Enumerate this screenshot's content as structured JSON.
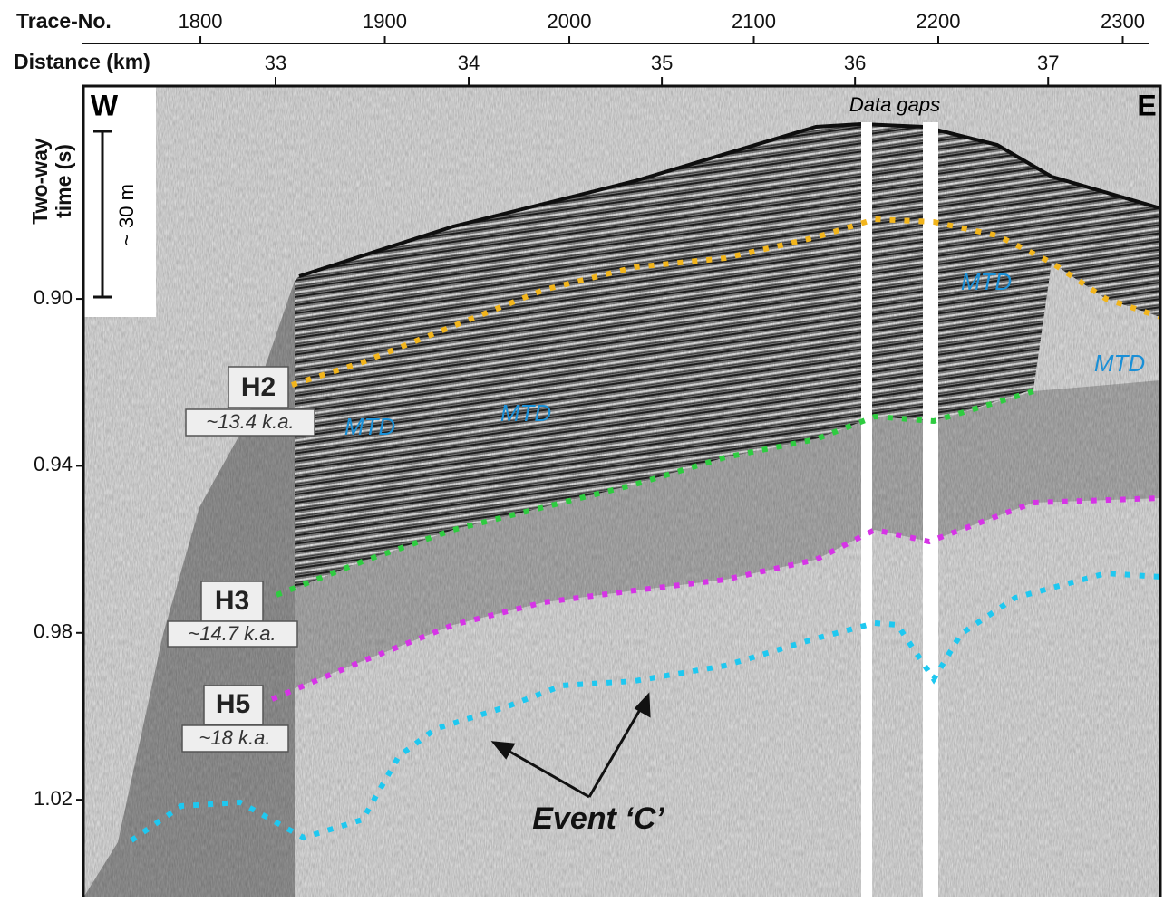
{
  "chart_data": {
    "type": "seismic",
    "x_label": "Trace-No.",
    "xlim": [
      1735.6,
      2314.5
    ],
    "xticks": [
      1800,
      1900,
      2000,
      2100,
      2200,
      2300
    ],
    "x2_label": "Distance (km)",
    "x2lim": [
      32.005,
      37.581
    ],
    "x2ticks": [
      33,
      34,
      35,
      36,
      37
    ],
    "y_label_lines": [
      "Two-way",
      "time (s)"
    ],
    "ylim": [
      0.849,
      1.0434
    ],
    "yticks": [
      {
        "value": 0.9,
        "label": "0.90"
      },
      {
        "value": 0.94,
        "label": "0.94"
      },
      {
        "value": 0.98,
        "label": "0.98"
      },
      {
        "value": 1.02,
        "label": "1.02"
      }
    ],
    "annotations": {
      "west": "W",
      "east": "E",
      "gaps": "Data gaps",
      "scale": "~ 30 m",
      "h2": "H2",
      "h2_age": "~13.4 k.a.",
      "h3": "H3",
      "h3_age": "~14.7 k.a.",
      "h5": "H5",
      "h5_age": "~18 k.a.",
      "mtd": [
        "MTD",
        "MTD",
        "MTD",
        "MTD"
      ],
      "event": "Event ‘C’"
    }
  }
}
